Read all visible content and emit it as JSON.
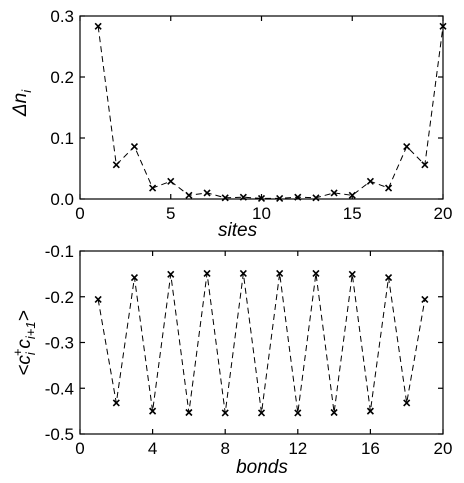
{
  "chart_data": [
    {
      "type": "line",
      "xlabel": "sites",
      "ylabel": "Δn_i",
      "xlim": [
        0,
        20
      ],
      "ylim": [
        0,
        0.3
      ],
      "xticks": [
        0,
        5,
        10,
        15,
        20
      ],
      "yticks": [
        0,
        0.1,
        0.2,
        0.3
      ],
      "xtick_labels": [
        "0",
        "5",
        "10",
        "15",
        "20"
      ],
      "ytick_labels": [
        "0.0",
        "0.1",
        "0.2",
        "0.3"
      ],
      "grid": false,
      "series": [
        {
          "marker": "x",
          "line": "dashed",
          "x": [
            1,
            2,
            3,
            4,
            5,
            6,
            7,
            8,
            9,
            10,
            11,
            12,
            13,
            14,
            15,
            16,
            17,
            18,
            19,
            20
          ],
          "y": [
            0.283,
            0.056,
            0.086,
            0.018,
            0.029,
            0.006,
            0.01,
            0.002,
            0.003,
            0.001,
            0.001,
            0.003,
            0.002,
            0.01,
            0.006,
            0.029,
            0.018,
            0.086,
            0.056,
            0.283
          ]
        }
      ]
    },
    {
      "type": "line",
      "xlabel": "bonds",
      "ylabel": "<c_i^+c_i+1>",
      "xlim": [
        0,
        20
      ],
      "ylim": [
        -0.5,
        -0.1
      ],
      "xticks": [
        0,
        4,
        8,
        12,
        16,
        20
      ],
      "yticks": [
        -0.5,
        -0.4,
        -0.3,
        -0.2,
        -0.1
      ],
      "xtick_labels": [
        "0",
        "4",
        "8",
        "12",
        "16",
        "20"
      ],
      "ytick_labels": [
        "-0.5",
        "-0.4",
        "-0.3",
        "-0.2",
        "-0.1"
      ],
      "grid": false,
      "series": [
        {
          "marker": "x",
          "line": "dashed",
          "x": [
            1,
            2,
            3,
            4,
            5,
            6,
            7,
            8,
            9,
            10,
            11,
            12,
            13,
            14,
            15,
            16,
            17,
            18,
            19
          ],
          "y": [
            -0.206,
            -0.432,
            -0.158,
            -0.45,
            -0.151,
            -0.453,
            -0.149,
            -0.454,
            -0.149,
            -0.454,
            -0.149,
            -0.454,
            -0.149,
            -0.453,
            -0.151,
            -0.45,
            -0.158,
            -0.432,
            -0.206
          ]
        }
      ]
    }
  ]
}
